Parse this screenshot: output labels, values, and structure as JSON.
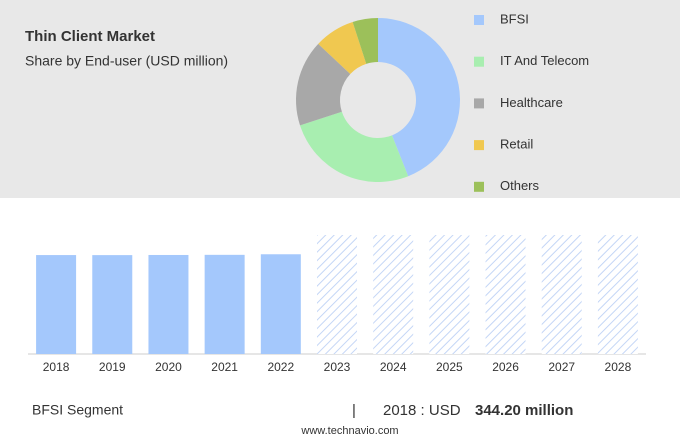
{
  "header": {
    "title": "Thin Client Market",
    "subtitle": "Share by End-user (USD million)"
  },
  "chart_data": [
    {
      "type": "donut",
      "categories": [
        "BFSI",
        "IT And Telecom",
        "Healthcare",
        "Retail",
        "Others"
      ],
      "values": [
        44,
        26,
        17,
        8,
        5
      ],
      "colors": [
        "#a4c8fc",
        "#a8eeb0",
        "#a8a8a8",
        "#f0c850",
        "#9cc05a"
      ]
    },
    {
      "type": "bar",
      "categories": [
        "2018",
        "2019",
        "2020",
        "2021",
        "2022",
        "2023",
        "2024",
        "2025",
        "2026",
        "2027",
        "2028"
      ],
      "values": [
        344.2,
        344,
        344.5,
        345,
        347,
        null,
        null,
        null,
        null,
        null,
        null
      ],
      "color": "#a4c8fc",
      "ylim": [
        0,
        414
      ]
    }
  ],
  "footer": {
    "segment": "BFSI Segment",
    "separator": "|",
    "year_unit": "2018 : USD",
    "amount": "344.20 million",
    "source": "www.technavio.com"
  }
}
